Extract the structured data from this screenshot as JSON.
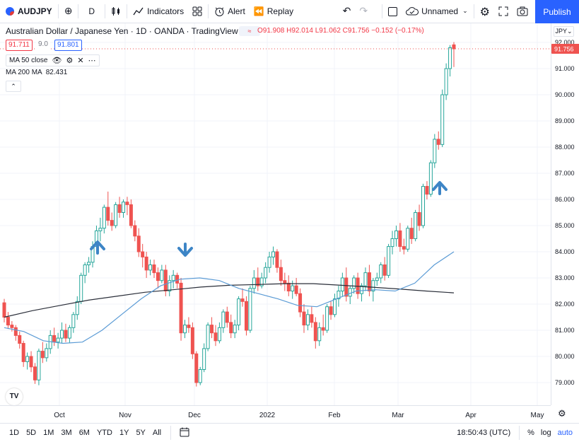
{
  "toolbar": {
    "symbol": "AUDJPY",
    "interval": "D",
    "indicators_label": "Indicators",
    "alert_label": "Alert",
    "replay_label": "Replay",
    "layout_name": "Unnamed",
    "publish_label": "Publish"
  },
  "legend": {
    "title": "Australian Dollar / Japanese Yen · 1D · OANDA · TradingView",
    "eq_badge": "≈",
    "ohlc": "O91.908 H92.014 L91.062 C91.756 −0.152 (−0.17%)",
    "sell_price": "91.711",
    "spread": "9.0",
    "buy_price": "91.801",
    "ma50_label": "MA 50 close",
    "ma200_label": "MA 200 MA",
    "ma200_value": "82.431"
  },
  "price_axis": {
    "currency": "JPY",
    "current_price": "91.756",
    "ticks": [
      "92.000",
      "91.000",
      "90.000",
      "89.000",
      "88.000",
      "87.000",
      "86.000",
      "85.000",
      "84.000",
      "83.000",
      "82.000",
      "81.000",
      "80.000",
      "79.000"
    ]
  },
  "time_axis": {
    "labels": [
      "Oct",
      "Nov",
      "Dec",
      "2022",
      "Feb",
      "Mar",
      "Apr",
      "May"
    ]
  },
  "bottom_bar": {
    "ranges": [
      "1D",
      "5D",
      "1M",
      "3M",
      "6M",
      "YTD",
      "1Y",
      "5Y",
      "All"
    ],
    "clock": "18:50:43 (UTC)",
    "percent": "%",
    "log": "log",
    "auto": "auto"
  },
  "colors": {
    "up": "#26a69a",
    "down": "#ef5350",
    "ma50": "#5b9bd5",
    "ma200": "#2a2e39",
    "arrow": "#3d85c6",
    "accent": "#2962ff"
  },
  "chart_data": {
    "type": "candlestick",
    "symbol": "AUDJPY",
    "interval": "1D",
    "ylim": [
      78.6,
      92.4
    ],
    "candles": [
      [
        82.05,
        82.2,
        81.3,
        81.5
      ],
      [
        81.5,
        81.7,
        81.05,
        81.2
      ],
      [
        81.2,
        81.35,
        80.95,
        81.1
      ],
      [
        81.1,
        81.2,
        80.6,
        80.8
      ],
      [
        80.8,
        80.95,
        80.3,
        80.5
      ],
      [
        80.5,
        80.6,
        79.6,
        79.8
      ],
      [
        79.8,
        80.15,
        79.5,
        80.0
      ],
      [
        80.0,
        80.2,
        79.4,
        79.6
      ],
      [
        79.6,
        79.75,
        78.95,
        79.1
      ],
      [
        79.1,
        80.3,
        78.9,
        80.2
      ],
      [
        80.2,
        80.55,
        79.75,
        79.95
      ],
      [
        79.95,
        80.5,
        79.8,
        80.3
      ],
      [
        80.3,
        81.0,
        80.1,
        80.8
      ],
      [
        80.8,
        81.1,
        80.4,
        80.55
      ],
      [
        80.55,
        80.9,
        80.3,
        80.7
      ],
      [
        80.7,
        81.3,
        80.5,
        81.0
      ],
      [
        81.0,
        81.25,
        80.55,
        80.7
      ],
      [
        80.7,
        81.2,
        80.5,
        81.1
      ],
      [
        81.1,
        81.7,
        80.9,
        81.6
      ],
      [
        81.6,
        82.3,
        81.4,
        82.1
      ],
      [
        82.1,
        83.2,
        82.0,
        83.1
      ],
      [
        83.1,
        83.6,
        82.8,
        83.5
      ],
      [
        83.5,
        83.8,
        83.2,
        83.6
      ],
      [
        83.6,
        84.4,
        83.4,
        84.2
      ],
      [
        84.2,
        85.0,
        84.1,
        84.8
      ],
      [
        84.8,
        85.3,
        84.4,
        84.9
      ],
      [
        84.9,
        85.8,
        84.7,
        85.7
      ],
      [
        85.7,
        86.3,
        85.0,
        85.2
      ],
      [
        85.2,
        85.5,
        84.8,
        85.0
      ],
      [
        85.0,
        85.9,
        84.9,
        85.8
      ],
      [
        85.8,
        86.1,
        85.3,
        85.5
      ],
      [
        85.5,
        86.0,
        85.3,
        85.9
      ],
      [
        85.9,
        86.1,
        85.4,
        85.8
      ],
      [
        85.8,
        86.0,
        84.9,
        85.0
      ],
      [
        85.0,
        85.2,
        84.4,
        84.6
      ],
      [
        84.6,
        84.9,
        83.8,
        84.0
      ],
      [
        84.0,
        84.3,
        83.4,
        83.8
      ],
      [
        83.8,
        84.0,
        83.0,
        83.3
      ],
      [
        83.3,
        83.7,
        83.1,
        83.5
      ],
      [
        83.5,
        83.7,
        83.0,
        83.2
      ],
      [
        83.2,
        83.4,
        82.6,
        82.9
      ],
      [
        82.9,
        83.5,
        82.8,
        83.3
      ],
      [
        83.3,
        83.5,
        82.3,
        82.5
      ],
      [
        82.5,
        83.1,
        82.3,
        82.9
      ],
      [
        82.9,
        83.3,
        82.6,
        83.1
      ],
      [
        83.1,
        83.2,
        82.6,
        82.8
      ],
      [
        82.8,
        83.0,
        80.6,
        80.9
      ],
      [
        80.9,
        81.4,
        80.7,
        81.2
      ],
      [
        81.2,
        81.5,
        80.9,
        81.1
      ],
      [
        81.1,
        81.3,
        79.9,
        80.1
      ],
      [
        80.1,
        80.2,
        78.85,
        79.0
      ],
      [
        79.0,
        79.6,
        78.9,
        79.5
      ],
      [
        79.5,
        80.5,
        79.4,
        80.3
      ],
      [
        80.3,
        81.3,
        80.2,
        81.2
      ],
      [
        81.2,
        81.5,
        80.7,
        80.9
      ],
      [
        80.9,
        81.2,
        80.4,
        80.6
      ],
      [
        80.6,
        81.3,
        80.5,
        81.1
      ],
      [
        81.1,
        81.8,
        80.9,
        81.7
      ],
      [
        81.7,
        81.9,
        81.1,
        81.3
      ],
      [
        81.3,
        81.6,
        80.7,
        80.9
      ],
      [
        80.9,
        81.4,
        80.7,
        81.2
      ],
      [
        81.2,
        82.3,
        81.0,
        82.2
      ],
      [
        82.2,
        82.6,
        81.9,
        82.1
      ],
      [
        82.1,
        82.3,
        80.8,
        81.0
      ],
      [
        81.0,
        82.7,
        80.9,
        82.6
      ],
      [
        82.6,
        83.3,
        82.4,
        83.0
      ],
      [
        83.0,
        83.4,
        82.5,
        82.7
      ],
      [
        82.7,
        83.2,
        82.6,
        83.0
      ],
      [
        83.0,
        83.6,
        82.8,
        83.4
      ],
      [
        83.4,
        84.0,
        83.2,
        83.8
      ],
      [
        83.8,
        84.2,
        83.5,
        84.0
      ],
      [
        84.0,
        84.1,
        83.2,
        83.4
      ],
      [
        83.4,
        83.7,
        82.7,
        82.9
      ],
      [
        82.9,
        83.2,
        82.5,
        82.8
      ],
      [
        82.8,
        83.1,
        82.3,
        82.5
      ],
      [
        82.5,
        82.9,
        82.2,
        82.7
      ],
      [
        82.7,
        83.0,
        82.3,
        82.4
      ],
      [
        82.4,
        82.6,
        81.5,
        81.7
      ],
      [
        81.7,
        82.0,
        80.9,
        81.2
      ],
      [
        81.2,
        81.8,
        81.0,
        81.6
      ],
      [
        81.6,
        81.9,
        81.1,
        81.3
      ],
      [
        81.3,
        81.5,
        80.3,
        80.6
      ],
      [
        80.6,
        81.3,
        80.4,
        81.1
      ],
      [
        81.1,
        81.6,
        80.8,
        81.0
      ],
      [
        81.0,
        82.0,
        80.9,
        81.9
      ],
      [
        81.9,
        82.1,
        81.4,
        81.6
      ],
      [
        81.6,
        82.4,
        81.5,
        82.2
      ],
      [
        82.2,
        82.7,
        81.9,
        82.5
      ],
      [
        82.5,
        83.2,
        82.3,
        83.0
      ],
      [
        83.0,
        83.4,
        82.1,
        82.3
      ],
      [
        82.3,
        82.7,
        82.0,
        82.6
      ],
      [
        82.6,
        83.1,
        82.4,
        83.0
      ],
      [
        83.0,
        83.2,
        82.2,
        82.4
      ],
      [
        82.4,
        82.8,
        82.1,
        82.7
      ],
      [
        82.7,
        83.4,
        82.5,
        83.2
      ],
      [
        83.2,
        83.5,
        82.3,
        82.5
      ],
      [
        82.5,
        83.0,
        82.1,
        82.9
      ],
      [
        82.9,
        83.2,
        82.7,
        83.0
      ],
      [
        83.0,
        83.6,
        82.8,
        83.5
      ],
      [
        83.5,
        83.8,
        82.9,
        83.1
      ],
      [
        83.1,
        84.3,
        83.0,
        84.2
      ],
      [
        84.2,
        84.8,
        83.9,
        84.5
      ],
      [
        84.5,
        85.0,
        84.2,
        84.8
      ],
      [
        84.8,
        85.1,
        84.0,
        84.2
      ],
      [
        84.2,
        84.5,
        83.9,
        84.1
      ],
      [
        84.1,
        85.0,
        84.0,
        84.9
      ],
      [
        84.9,
        85.3,
        84.3,
        84.5
      ],
      [
        84.5,
        85.6,
        84.4,
        85.5
      ],
      [
        85.5,
        85.8,
        84.8,
        85.0
      ],
      [
        85.0,
        86.6,
        84.9,
        86.5
      ],
      [
        86.5,
        86.7,
        86.0,
        86.2
      ],
      [
        86.2,
        87.5,
        86.1,
        87.4
      ],
      [
        87.4,
        88.5,
        87.2,
        88.3
      ],
      [
        88.3,
        88.6,
        87.9,
        88.1
      ],
      [
        88.1,
        90.2,
        88.0,
        90.0
      ],
      [
        90.0,
        91.2,
        89.8,
        91.0
      ],
      [
        91.0,
        91.9,
        90.7,
        91.8
      ],
      [
        91.908,
        92.014,
        91.062,
        91.756
      ]
    ],
    "ma50": [
      81.1,
      80.95,
      80.6,
      80.5,
      80.55,
      81.0,
      81.6,
      82.2,
      82.7,
      82.95,
      83.0,
      82.9,
      82.6,
      82.4,
      82.2,
      81.95,
      81.9,
      82.2,
      82.5,
      82.55,
      82.5,
      82.8,
      83.5,
      84.0
    ],
    "ma200": [
      81.5,
      81.75,
      81.95,
      82.15,
      82.3,
      82.45,
      82.55,
      82.65,
      82.72,
      82.75,
      82.78,
      82.78,
      82.72,
      82.65,
      82.58,
      82.5,
      82.43
    ],
    "annotations": [
      {
        "type": "arrow-up",
        "near": "Oct"
      },
      {
        "type": "arrow-down",
        "near": "Nov-end"
      },
      {
        "type": "arrow-up",
        "near": "Mar-end"
      }
    ]
  }
}
